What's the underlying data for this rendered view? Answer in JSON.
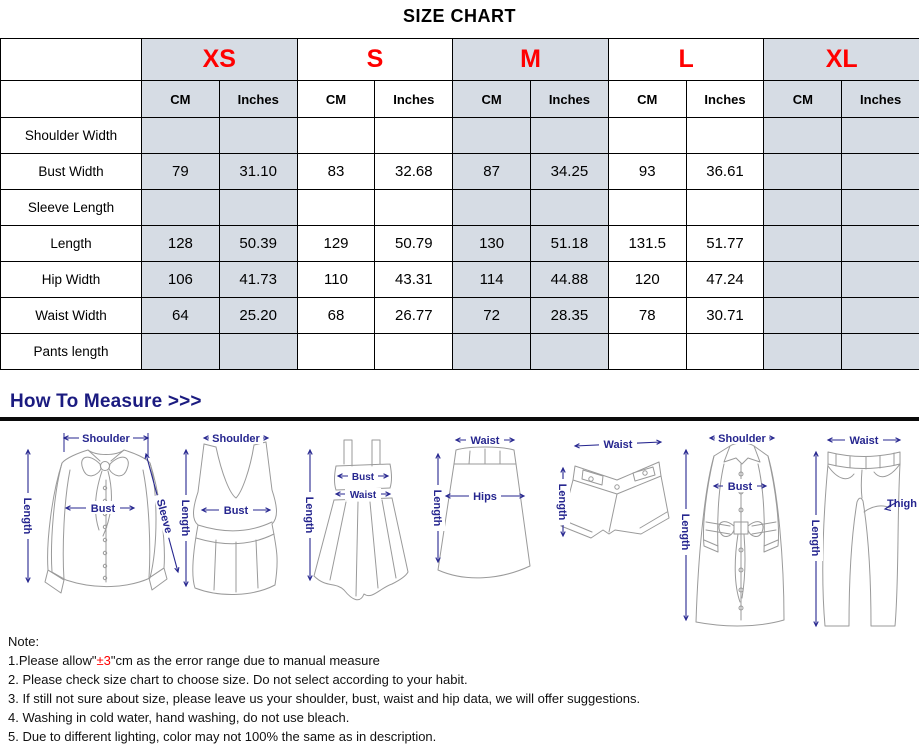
{
  "page_title": "SIZE CHART",
  "colors": {
    "size_label_red": "#ff0000",
    "shaded_cell": "#d6dce4",
    "diagram_navy": "#26268f",
    "heading_navy": "#1b1b80",
    "error_red": "#ff0000"
  },
  "table": {
    "sizes": [
      "XS",
      "S",
      "M",
      "L",
      "XL"
    ],
    "units": [
      "CM",
      "Inches"
    ],
    "rows": [
      {
        "label": "Shoulder Width",
        "values": [
          "",
          "",
          "",
          "",
          "",
          "",
          "",
          "",
          "",
          ""
        ]
      },
      {
        "label": "Bust Width",
        "values": [
          "79",
          "31.10",
          "83",
          "32.68",
          "87",
          "34.25",
          "93",
          "36.61",
          "",
          ""
        ]
      },
      {
        "label": "Sleeve Length",
        "values": [
          "",
          "",
          "",
          "",
          "",
          "",
          "",
          "",
          "",
          ""
        ]
      },
      {
        "label": "Length",
        "values": [
          "128",
          "50.39",
          "129",
          "50.79",
          "130",
          "51.18",
          "131.5",
          "51.77",
          "",
          ""
        ]
      },
      {
        "label": "Hip Width",
        "values": [
          "106",
          "41.73",
          "110",
          "43.31",
          "114",
          "44.88",
          "120",
          "47.24",
          "",
          ""
        ]
      },
      {
        "label": "Waist Width",
        "values": [
          "64",
          "25.20",
          "68",
          "26.77",
          "72",
          "28.35",
          "78",
          "30.71",
          "",
          ""
        ]
      },
      {
        "label": "Pants length",
        "values": [
          "",
          "",
          "",
          "",
          "",
          "",
          "",
          "",
          "",
          ""
        ]
      }
    ]
  },
  "measure": {
    "heading": "How To Measure >>>",
    "diagrams": [
      {
        "name": "blouse",
        "labels": {
          "shoulder": "Shoulder",
          "length": "Length",
          "bust": "Bust",
          "sleeve": "Sleeve"
        }
      },
      {
        "name": "tank-top",
        "labels": {
          "shoulder": "Shoulder",
          "length": "Length",
          "bust": "Bust"
        }
      },
      {
        "name": "dress",
        "labels": {
          "length": "Length",
          "bust": "Bust",
          "waist": "Waist"
        }
      },
      {
        "name": "skirt",
        "labels": {
          "waist": "Waist",
          "hips": "Hips",
          "length": "Length"
        }
      },
      {
        "name": "shorts",
        "labels": {
          "waist": "Waist",
          "length": "Length"
        }
      },
      {
        "name": "coat",
        "labels": {
          "shoulder": "Shoulder",
          "bust": "Bust",
          "length": "Length"
        }
      },
      {
        "name": "pants",
        "labels": {
          "waist": "Waist",
          "length": "Length",
          "thigh": "Thigh"
        }
      }
    ]
  },
  "notes": {
    "heading": "Note:",
    "line1_prefix": "1.Please allow\"",
    "line1_highlight": "±3",
    "line1_suffix": "\"cm as the error range due to manual measure",
    "items": [
      "2. Please check size chart to choose size. Do not select according to your habit.",
      "3. If still not sure about size, please leave us your shoulder, bust, waist and hip data, we will offer suggestions.",
      "4. Washing in cold water, hand washing, do not use bleach.",
      "5. Due to different lighting, color may not 100% the same as in description."
    ]
  }
}
